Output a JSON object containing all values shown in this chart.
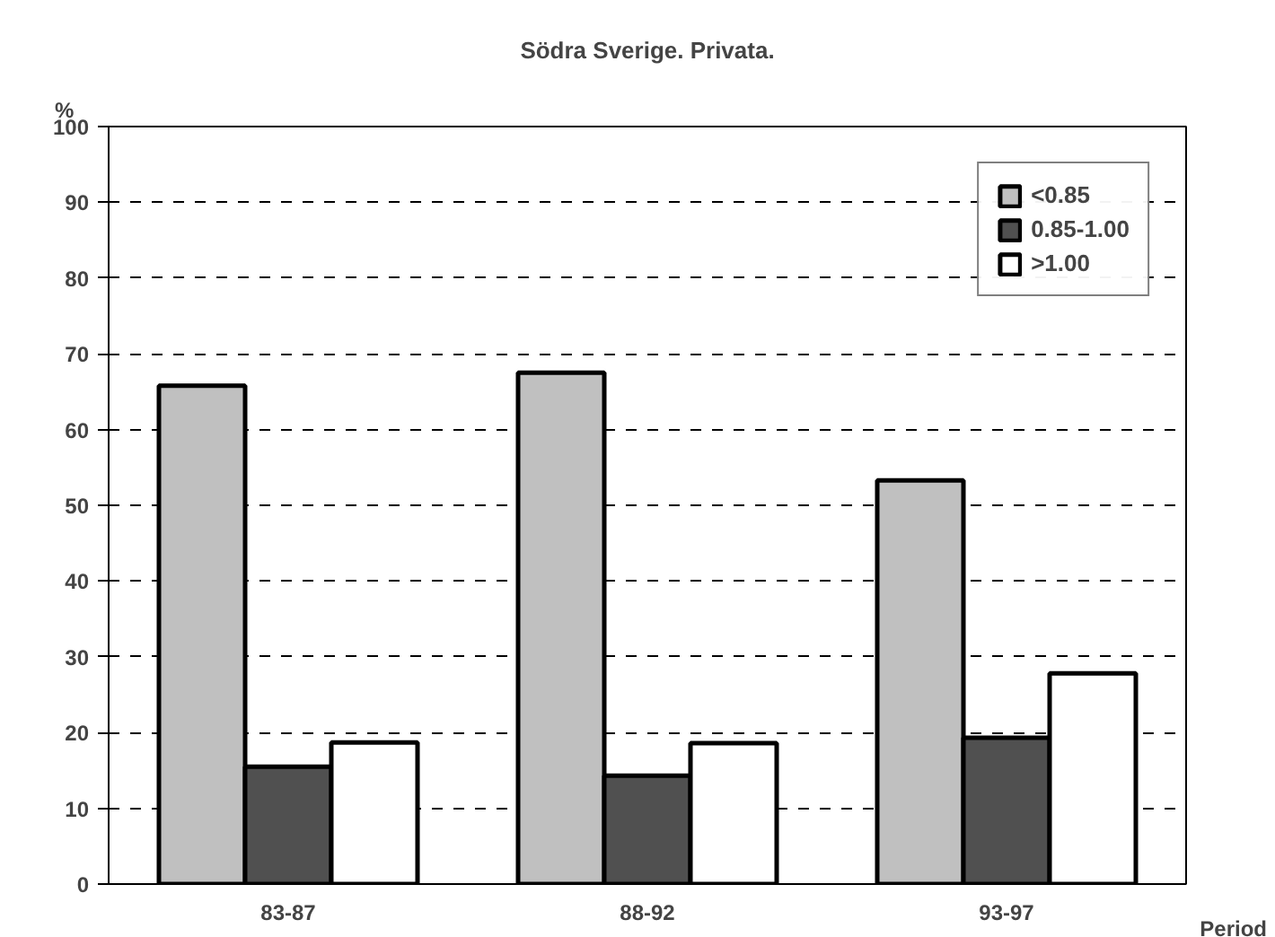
{
  "chart_data": {
    "type": "bar",
    "title": "Södra Sverige. Privata.",
    "xlabel": "Period",
    "ylabel": "%",
    "categories": [
      "83-87",
      "88-92",
      "93-97"
    ],
    "series": [
      {
        "name": "<0.85",
        "color": "#c0c0c0",
        "values": [
          65.8,
          67.5,
          53.3
        ]
      },
      {
        "name": "0.85-1.00",
        "color": "#505050",
        "values": [
          15.5,
          14.3,
          19.3
        ]
      },
      {
        "name": ">1.00",
        "color": "#ffffff",
        "values": [
          18.7,
          18.6,
          27.8
        ]
      }
    ],
    "ylim": [
      0,
      100
    ],
    "yticks": [
      0,
      10,
      20,
      30,
      40,
      50,
      60,
      70,
      80,
      90,
      100
    ],
    "grid": "y",
    "legend": "top right"
  }
}
